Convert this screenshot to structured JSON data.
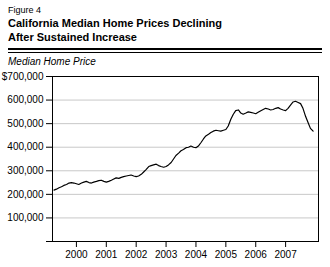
{
  "chart_data": {
    "type": "line",
    "annotations": [
      "Figure 4"
    ],
    "title": [
      "California Median Home Prices Declining",
      "After Sustained Increase"
    ],
    "ylabel": "Median Home Price",
    "color": "#000000",
    "grid": "y",
    "xlim": [
      1999.2,
      2008.1
    ],
    "xticks": [
      2000,
      2001,
      2002,
      2003,
      2004,
      2005,
      2006,
      2007
    ],
    "ylim": [
      0,
      700000
    ],
    "yticks": [
      {
        "value": 0,
        "label": ""
      },
      {
        "value": 100000,
        "label": "100,000"
      },
      {
        "value": 200000,
        "label": "200,000"
      },
      {
        "value": 300000,
        "label": "300,000"
      },
      {
        "value": 400000,
        "label": "400,000"
      },
      {
        "value": 500000,
        "label": "500,000"
      },
      {
        "value": 600000,
        "label": "600,000"
      },
      {
        "value": 700000,
        "label": "$700,000"
      }
    ],
    "x": [
      1999.25,
      1999.33,
      1999.42,
      1999.5,
      1999.58,
      1999.67,
      1999.75,
      1999.83,
      1999.92,
      2000.0,
      2000.08,
      2000.17,
      2000.25,
      2000.33,
      2000.42,
      2000.5,
      2000.58,
      2000.67,
      2000.75,
      2000.83,
      2000.92,
      2001.0,
      2001.08,
      2001.17,
      2001.25,
      2001.33,
      2001.42,
      2001.5,
      2001.58,
      2001.67,
      2001.75,
      2001.83,
      2001.92,
      2002.0,
      2002.08,
      2002.17,
      2002.25,
      2002.33,
      2002.42,
      2002.5,
      2002.58,
      2002.67,
      2002.75,
      2002.83,
      2002.92,
      2003.0,
      2003.08,
      2003.17,
      2003.25,
      2003.33,
      2003.42,
      2003.5,
      2003.58,
      2003.67,
      2003.75,
      2003.83,
      2003.92,
      2004.0,
      2004.08,
      2004.17,
      2004.25,
      2004.33,
      2004.42,
      2004.5,
      2004.58,
      2004.67,
      2004.75,
      2004.83,
      2004.92,
      2005.0,
      2005.08,
      2005.17,
      2005.25,
      2005.33,
      2005.42,
      2005.5,
      2005.58,
      2005.67,
      2005.75,
      2005.83,
      2005.92,
      2006.0,
      2006.08,
      2006.17,
      2006.25,
      2006.33,
      2006.42,
      2006.5,
      2006.58,
      2006.67,
      2006.75,
      2006.83,
      2006.92,
      2007.0,
      2007.08,
      2007.17,
      2007.25,
      2007.33,
      2007.42,
      2007.5,
      2007.58,
      2007.67,
      2007.75,
      2007.83,
      2007.92
    ],
    "values": [
      218000,
      222000,
      228000,
      232000,
      238000,
      242000,
      248000,
      250000,
      248000,
      245000,
      242000,
      248000,
      252000,
      255000,
      250000,
      248000,
      252000,
      255000,
      258000,
      260000,
      255000,
      252000,
      255000,
      260000,
      265000,
      270000,
      268000,
      272000,
      275000,
      278000,
      280000,
      282000,
      278000,
      275000,
      278000,
      285000,
      295000,
      305000,
      318000,
      322000,
      325000,
      328000,
      322000,
      318000,
      315000,
      318000,
      325000,
      335000,
      350000,
      365000,
      375000,
      385000,
      390000,
      398000,
      400000,
      405000,
      400000,
      398000,
      405000,
      420000,
      435000,
      448000,
      455000,
      462000,
      468000,
      472000,
      470000,
      468000,
      472000,
      475000,
      490000,
      520000,
      540000,
      555000,
      558000,
      545000,
      540000,
      545000,
      550000,
      548000,
      545000,
      542000,
      548000,
      555000,
      560000,
      565000,
      562000,
      558000,
      560000,
      565000,
      568000,
      562000,
      558000,
      555000,
      565000,
      580000,
      592000,
      595000,
      590000,
      585000,
      565000,
      530000,
      505000,
      480000,
      468000
    ]
  }
}
